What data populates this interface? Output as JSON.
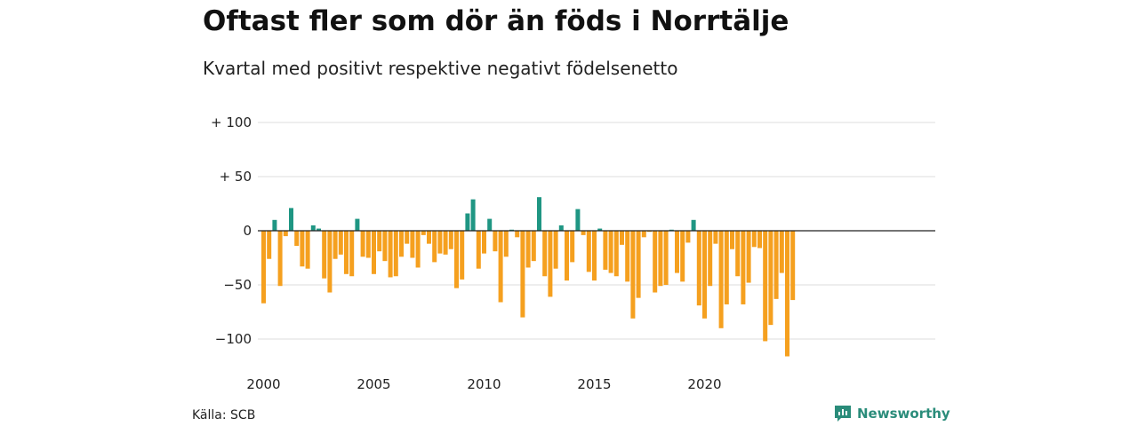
{
  "title": "Oftast fler som dör än föds i Norrtälje",
  "subtitle": "Kvartal med positivt respektive negativt födelsenetto",
  "source": "Källa: SCB",
  "brand": "Newsworthy",
  "colors": {
    "positive": "#1f9683",
    "negative": "#f5a01f",
    "grid": "#dddddd",
    "zero": "#222222"
  },
  "chart_data": {
    "type": "bar",
    "ylim": [
      -120,
      105
    ],
    "yticks": [
      {
        "value": 100,
        "label": "+ 100"
      },
      {
        "value": 50,
        "label": "+  50"
      },
      {
        "value": 0,
        "label": "0"
      },
      {
        "value": -50,
        "label": "−50"
      },
      {
        "value": -100,
        "label": "−100"
      }
    ],
    "xticks": [
      {
        "value": 2000,
        "label": "2000"
      },
      {
        "value": 2005,
        "label": "2005"
      },
      {
        "value": 2010,
        "label": "2010"
      },
      {
        "value": 2015,
        "label": "2015"
      },
      {
        "value": 2020,
        "label": "2020"
      }
    ],
    "start_year": 2000,
    "start_quarter": 1,
    "values": [
      -67,
      -26,
      10,
      -51,
      -5,
      21,
      -14,
      -33,
      -35,
      5,
      2,
      -44,
      -57,
      -26,
      -22,
      -40,
      -42,
      11,
      -24,
      -25,
      -40,
      -19,
      -28,
      -43,
      -42,
      -24,
      -12,
      -25,
      -34,
      -4,
      -12,
      -29,
      -21,
      -22,
      -17,
      -53,
      -45,
      16,
      29,
      -35,
      -21,
      11,
      -19,
      -66,
      -24,
      1,
      -6,
      -80,
      -34,
      -28,
      31,
      -42,
      -61,
      -35,
      5,
      -46,
      -29,
      20,
      -4,
      -38,
      -46,
      2,
      -36,
      -39,
      -42,
      -13,
      -47,
      -81,
      -62,
      -6,
      -1,
      -57,
      -51,
      -50,
      1,
      -39,
      -47,
      -11,
      10,
      -69,
      -81,
      -51,
      -12,
      -90,
      -68,
      -17,
      -42,
      -68,
      -48,
      -15,
      -16,
      -102,
      -87,
      -63,
      -39,
      -116,
      -64
    ]
  }
}
